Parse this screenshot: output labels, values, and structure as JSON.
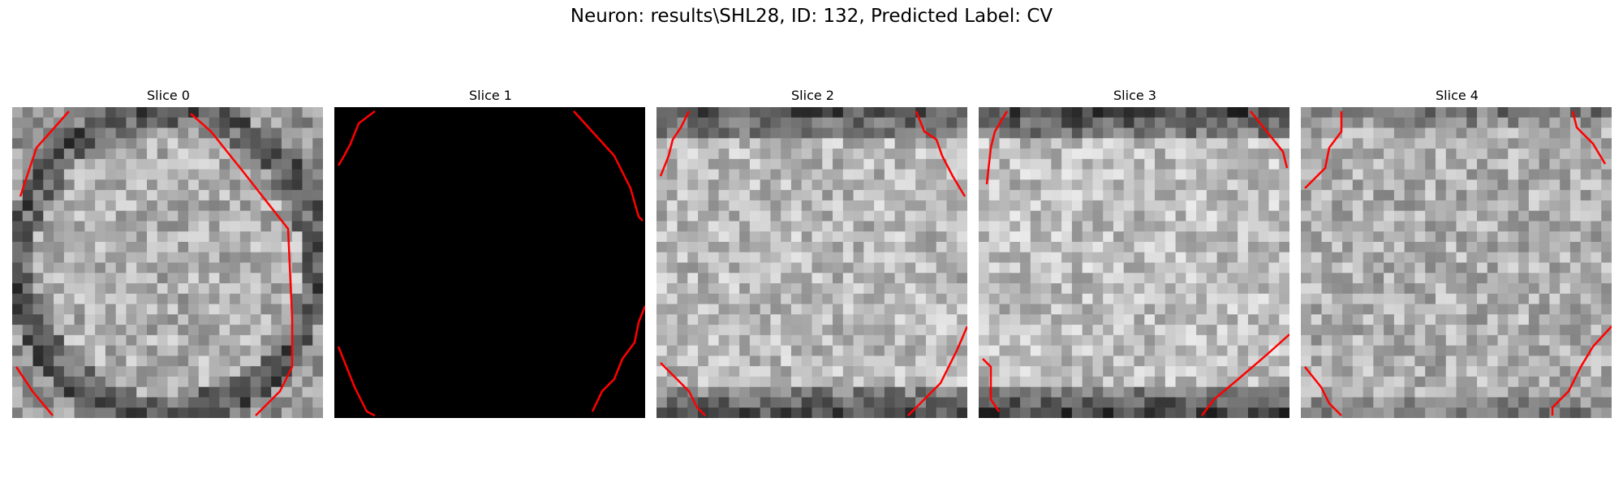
{
  "figure": {
    "title": "Neuron: results\\SHL28, ID: 132, Predicted Label: CV"
  },
  "contour_color": "#ff0000",
  "panels": [
    {
      "title": "Slice 0",
      "blank": false,
      "center_brightness": 175,
      "edge_brightness": 120,
      "ring": true
    },
    {
      "title": "Slice 1",
      "blank": true
    },
    {
      "title": "Slice 2",
      "blank": false,
      "center_brightness": 185,
      "edge_brightness": 80,
      "ring": false
    },
    {
      "title": "Slice 3",
      "blank": false,
      "center_brightness": 190,
      "edge_brightness": 70,
      "ring": false
    },
    {
      "title": "Slice 4",
      "blank": false,
      "center_brightness": 175,
      "edge_brightness": 120,
      "ring": false
    }
  ]
}
